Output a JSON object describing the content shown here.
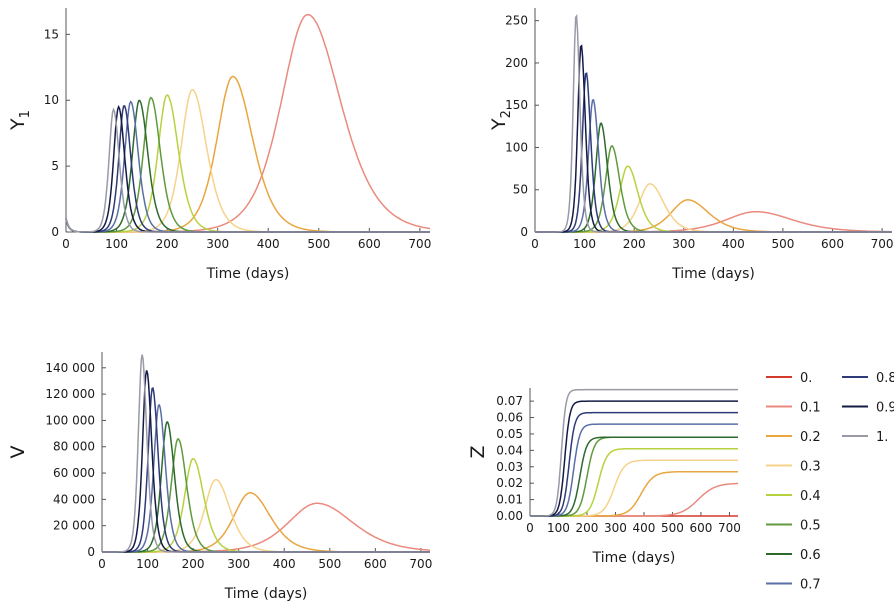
{
  "chart_data": [
    {
      "type": "line",
      "ylabel": "Y",
      "ylabel_sub": "1",
      "xlabel": "Time (days)",
      "xlim": [
        0,
        720
      ],
      "ylim": [
        0,
        17
      ],
      "xticks": [
        0,
        100,
        200,
        300,
        400,
        500,
        600,
        700
      ],
      "yticks": [
        0,
        5,
        10,
        15
      ],
      "initial_value": 1.0,
      "series": [
        {
          "name": "0.1",
          "peak_x": 478,
          "peak_y": 16.5,
          "width": 70
        },
        {
          "name": "0.2",
          "peak_x": 330,
          "peak_y": 11.8,
          "width": 42
        },
        {
          "name": "0.3",
          "peak_x": 250,
          "peak_y": 10.8,
          "width": 30
        },
        {
          "name": "0.4",
          "peak_x": 200,
          "peak_y": 10.4,
          "width": 24
        },
        {
          "name": "0.5",
          "peak_x": 168,
          "peak_y": 10.2,
          "width": 20
        },
        {
          "name": "0.6",
          "peak_x": 145,
          "peak_y": 10.0,
          "width": 18
        },
        {
          "name": "0.7",
          "peak_x": 128,
          "peak_y": 9.9,
          "width": 16
        },
        {
          "name": "0.8",
          "peak_x": 115,
          "peak_y": 9.6,
          "width": 14
        },
        {
          "name": "0.9",
          "peak_x": 104,
          "peak_y": 9.5,
          "width": 13
        },
        {
          "name": "1.",
          "peak_x": 94,
          "peak_y": 9.3,
          "width": 12
        }
      ]
    },
    {
      "type": "line",
      "ylabel": "Y",
      "ylabel_sub": "2",
      "xlabel": "Time (days)",
      "xlim": [
        0,
        720
      ],
      "ylim": [
        0,
        265
      ],
      "xticks": [
        0,
        100,
        200,
        300,
        400,
        500,
        600,
        700
      ],
      "yticks": [
        0,
        50,
        100,
        150,
        200,
        250
      ],
      "series": [
        {
          "name": "0.1",
          "peak_x": 445,
          "peak_y": 24,
          "width": 80
        },
        {
          "name": "0.2",
          "peak_x": 308,
          "peak_y": 38,
          "width": 45
        },
        {
          "name": "0.3",
          "peak_x": 232,
          "peak_y": 57,
          "width": 30
        },
        {
          "name": "0.4",
          "peak_x": 187,
          "peak_y": 78,
          "width": 22
        },
        {
          "name": "0.5",
          "peak_x": 155,
          "peak_y": 102,
          "width": 17
        },
        {
          "name": "0.6",
          "peak_x": 133,
          "peak_y": 129,
          "width": 14
        },
        {
          "name": "0.7",
          "peak_x": 117,
          "peak_y": 157,
          "width": 12
        },
        {
          "name": "0.8",
          "peak_x": 103,
          "peak_y": 189,
          "width": 10
        },
        {
          "name": "0.9",
          "peak_x": 93,
          "peak_y": 222,
          "width": 9
        },
        {
          "name": "1.",
          "peak_x": 83,
          "peak_y": 258,
          "width": 8
        }
      ]
    },
    {
      "type": "line",
      "ylabel": "V",
      "xlabel": "Time (days)",
      "xlim": [
        0,
        720
      ],
      "ylim": [
        0,
        152000
      ],
      "xticks": [
        0,
        100,
        200,
        300,
        400,
        500,
        600,
        700
      ],
      "yticks": [
        0,
        20000,
        40000,
        60000,
        80000,
        100000,
        120000,
        140000
      ],
      "ytick_labels": [
        "0",
        "20 000",
        "40 000",
        "60 000",
        "80 000",
        "100 000",
        "120 000",
        "140 000"
      ],
      "series": [
        {
          "name": "0.1",
          "peak_x": 472,
          "peak_y": 37000,
          "width": 85
        },
        {
          "name": "0.2",
          "peak_x": 325,
          "peak_y": 45000,
          "width": 48
        },
        {
          "name": "0.3",
          "peak_x": 250,
          "peak_y": 55000,
          "width": 33
        },
        {
          "name": "0.4",
          "peak_x": 200,
          "peak_y": 71000,
          "width": 25
        },
        {
          "name": "0.5",
          "peak_x": 167,
          "peak_y": 86000,
          "width": 20
        },
        {
          "name": "0.6",
          "peak_x": 143,
          "peak_y": 99000,
          "width": 17
        },
        {
          "name": "0.7",
          "peak_x": 125,
          "peak_y": 112000,
          "width": 15
        },
        {
          "name": "0.8",
          "peak_x": 111,
          "peak_y": 125000,
          "width": 13
        },
        {
          "name": "0.9",
          "peak_x": 98,
          "peak_y": 138000,
          "width": 12
        },
        {
          "name": "1.",
          "peak_x": 88,
          "peak_y": 150000,
          "width": 11
        }
      ]
    },
    {
      "type": "line",
      "ylabel": "Z",
      "xlabel": "Time (days)",
      "xlim": [
        0,
        730
      ],
      "ylim": [
        0,
        0.078
      ],
      "xticks": [
        0,
        100,
        200,
        300,
        400,
        500,
        600,
        700
      ],
      "yticks": [
        0,
        0.01,
        0.02,
        0.03,
        0.04,
        0.05,
        0.06,
        0.07
      ],
      "ytick_labels": [
        "0.00",
        "0.01",
        "0.02",
        "0.03",
        "0.04",
        "0.05",
        "0.06",
        "0.07"
      ],
      "series": [
        {
          "name": "0.",
          "plateau": 0.0,
          "mid_x": 0,
          "steep": 20
        },
        {
          "name": "0.1",
          "plateau": 0.02,
          "mid_x": 590,
          "steep": 30
        },
        {
          "name": "0.2",
          "plateau": 0.027,
          "mid_x": 390,
          "steep": 22
        },
        {
          "name": "0.3",
          "plateau": 0.034,
          "mid_x": 295,
          "steep": 18
        },
        {
          "name": "0.4",
          "plateau": 0.041,
          "mid_x": 240,
          "steep": 15
        },
        {
          "name": "0.5",
          "plateau": 0.048,
          "mid_x": 200,
          "steep": 13
        },
        {
          "name": "0.6",
          "plateau": 0.048,
          "mid_x": 175,
          "steep": 12
        },
        {
          "name": "0.7",
          "plateau": 0.056,
          "mid_x": 153,
          "steep": 11
        },
        {
          "name": "0.8",
          "plateau": 0.063,
          "mid_x": 137,
          "steep": 10
        },
        {
          "name": "0.9",
          "plateau": 0.07,
          "mid_x": 122,
          "steep": 9
        },
        {
          "name": "1.",
          "plateau": 0.077,
          "mid_x": 110,
          "steep": 8
        }
      ]
    }
  ],
  "legend": [
    {
      "label": "0.",
      "color": "#d33a2c"
    },
    {
      "label": "0.1",
      "color": "#ea8a7e"
    },
    {
      "label": "0.2",
      "color": "#e9a540"
    },
    {
      "label": "0.3",
      "color": "#f6d28a"
    },
    {
      "label": "0.4",
      "color": "#b7d23f"
    },
    {
      "label": "0.5",
      "color": "#5f9a3c"
    },
    {
      "label": "0.6",
      "color": "#2e6a2e"
    },
    {
      "label": "0.7",
      "color": "#5a6fa6"
    },
    {
      "label": "0.8",
      "color": "#2f3a78"
    },
    {
      "label": "0.9",
      "color": "#141a46"
    },
    {
      "label": "1.",
      "color": "#9a9aa6"
    }
  ]
}
